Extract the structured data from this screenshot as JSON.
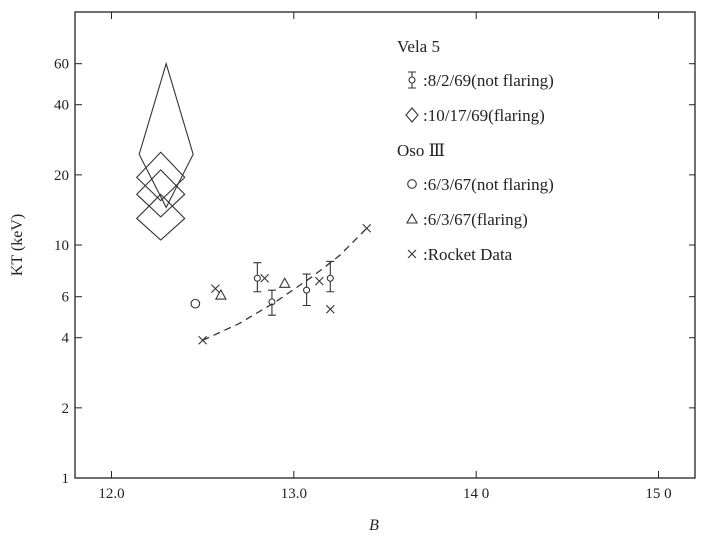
{
  "chart_data": {
    "type": "scatter",
    "xlabel": "B",
    "ylabel": "KT (keV)",
    "xlim": [
      11.8,
      15.2
    ],
    "ylim": [
      1,
      100
    ],
    "y_scale": "log",
    "x_ticks": [
      {
        "value": 12.0,
        "label": "12.0"
      },
      {
        "value": 13.0,
        "label": "13.0"
      },
      {
        "value": 14.0,
        "label": "14 0"
      },
      {
        "value": 15.0,
        "label": "15 0"
      }
    ],
    "y_ticks": [
      {
        "value": 1,
        "label": "1"
      },
      {
        "value": 2,
        "label": "2"
      },
      {
        "value": 4,
        "label": "4"
      },
      {
        "value": 6,
        "label": "6"
      },
      {
        "value": 10,
        "label": "10"
      },
      {
        "value": 20,
        "label": "20"
      },
      {
        "value": 40,
        "label": "40"
      },
      {
        "value": 60,
        "label": "60"
      }
    ],
    "legend": {
      "placement": "top-right",
      "groups": [
        {
          "title": "Vela 5",
          "entries": [
            {
              "symbol": "errorbar-circle",
              "label": ":8/2/69(not flaring)"
            },
            {
              "symbol": "diamond",
              "label": ":10/17/69(flaring)"
            }
          ]
        },
        {
          "title": "Oso Ⅲ",
          "entries": [
            {
              "symbol": "circle",
              "label": ":6/3/67(not flaring)"
            },
            {
              "symbol": "triangle",
              "label": ":6/3/67(flaring)"
            },
            {
              "symbol": "cross",
              "label": ":Rocket Data"
            }
          ]
        }
      ]
    },
    "series": [
      {
        "name": "8/2/69(not flaring)",
        "symbol": "errorbar-circle",
        "points": [
          {
            "x": 12.8,
            "y": 7.2,
            "lo": 6.3,
            "hi": 8.4
          },
          {
            "x": 12.88,
            "y": 5.7,
            "lo": 5.0,
            "hi": 6.4
          },
          {
            "x": 13.07,
            "y": 6.4,
            "lo": 5.5,
            "hi": 7.5
          },
          {
            "x": 13.2,
            "y": 7.2,
            "lo": 6.3,
            "hi": 8.5
          }
        ]
      },
      {
        "name": "10/17/69(flaring)",
        "symbol": "diamond",
        "points": [
          {
            "x": 12.27,
            "y": 19.5,
            "lo": 15.5,
            "hi": 25
          },
          {
            "x": 12.27,
            "y": 16.5,
            "lo": 13.2,
            "hi": 21
          },
          {
            "x": 12.27,
            "y": 13.0,
            "lo": 10.5,
            "hi": 16.5
          },
          {
            "x": 12.3,
            "y": 24.5,
            "lo": 14.5,
            "hi": 60
          }
        ]
      },
      {
        "name": "6/3/67(not flaring)",
        "symbol": "circle",
        "points": [
          {
            "x": 12.46,
            "y": 5.6
          }
        ]
      },
      {
        "name": "6/3/67(flaring)",
        "symbol": "triangle",
        "points": [
          {
            "x": 12.6,
            "y": 6.1
          },
          {
            "x": 12.95,
            "y": 6.85
          }
        ]
      },
      {
        "name": "Rocket Data",
        "symbol": "cross",
        "points": [
          {
            "x": 12.5,
            "y": 3.9
          },
          {
            "x": 12.57,
            "y": 6.5
          },
          {
            "x": 12.84,
            "y": 7.2
          },
          {
            "x": 13.14,
            "y": 7.0
          },
          {
            "x": 13.2,
            "y": 5.3
          },
          {
            "x": 13.4,
            "y": 11.8
          }
        ]
      }
    ],
    "fit_curve": {
      "style": "dashed",
      "points": [
        {
          "x": 12.5,
          "y": 3.9
        },
        {
          "x": 12.7,
          "y": 4.6
        },
        {
          "x": 12.9,
          "y": 5.7
        },
        {
          "x": 13.1,
          "y": 7.3
        },
        {
          "x": 13.25,
          "y": 9.0
        },
        {
          "x": 13.4,
          "y": 11.8
        }
      ]
    }
  }
}
